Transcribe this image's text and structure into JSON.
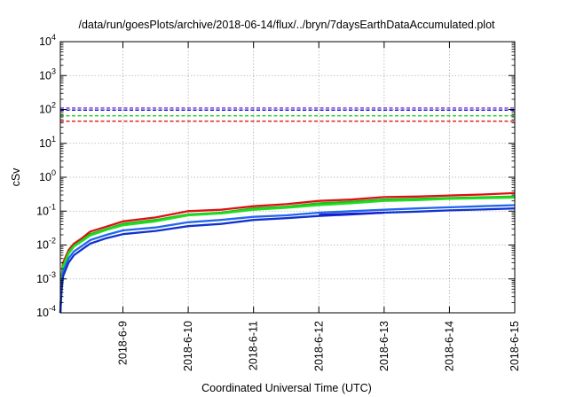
{
  "chart_data": {
    "type": "line",
    "title": "/data/run/goesPlots/archive/2018-06-14/flux/../bryn/7daysEarthDataAccumulated.plot",
    "xlabel": "Coordinated Universal Time (UTC)",
    "ylabel": "cSv",
    "y_scale": "log",
    "ylim": [
      0.0001,
      10000
    ],
    "y_ticks": [
      {
        "value": 0.0001,
        "base": "10",
        "exp": "-4"
      },
      {
        "value": 0.001,
        "base": "10",
        "exp": "-3"
      },
      {
        "value": 0.01,
        "base": "10",
        "exp": "-2"
      },
      {
        "value": 0.1,
        "base": "10",
        "exp": "-1"
      },
      {
        "value": 1,
        "base": "10",
        "exp": "0"
      },
      {
        "value": 10,
        "base": "10",
        "exp": "1"
      },
      {
        "value": 100,
        "base": "10",
        "exp": "2"
      },
      {
        "value": 1000,
        "base": "10",
        "exp": "3"
      },
      {
        "value": 10000,
        "base": "10",
        "exp": "4"
      }
    ],
    "xlim": [
      "2018-06-08 01:00",
      "2018-06-15 00:00"
    ],
    "x_ticks": [
      "2018-6-9",
      "2018-6-10",
      "2018-6-11",
      "2018-6-12",
      "2018-6-13",
      "2018-6-14",
      "2018-6-15"
    ],
    "grid": true,
    "legend": "none",
    "thresholds": [
      {
        "value": 110,
        "color": "#7b2fd0",
        "style": "dashed"
      },
      {
        "value": 95,
        "color": "#1010e0",
        "style": "dashed"
      },
      {
        "value": 65,
        "color": "#1fce1f",
        "style": "dashed"
      },
      {
        "value": 45,
        "color": "#e01010",
        "style": "dashed"
      }
    ],
    "series": [
      {
        "color": "#dd1111",
        "points": [
          [
            "2018-06-08 01:00",
            0.0001
          ],
          [
            "2018-06-08 01:30",
            0.0012
          ],
          [
            "2018-06-08 02:00",
            0.003
          ],
          [
            "2018-06-08 04:00",
            0.007
          ],
          [
            "2018-06-08 06:00",
            0.011
          ],
          [
            "2018-06-08 09:00",
            0.016
          ],
          [
            "2018-06-08 12:00",
            0.025
          ],
          [
            "2018-06-08 18:00",
            0.035
          ],
          [
            "2018-06-09 00:00",
            0.05
          ],
          [
            "2018-06-09 12:00",
            0.065
          ],
          [
            "2018-06-10 00:00",
            0.1
          ],
          [
            "2018-06-10 12:00",
            0.11
          ],
          [
            "2018-06-11 00:00",
            0.14
          ],
          [
            "2018-06-11 12:00",
            0.16
          ],
          [
            "2018-06-12 00:00",
            0.2
          ],
          [
            "2018-06-12 12:00",
            0.22
          ],
          [
            "2018-06-13 00:00",
            0.26
          ],
          [
            "2018-06-13 12:00",
            0.27
          ],
          [
            "2018-06-14 00:00",
            0.29
          ],
          [
            "2018-06-14 12:00",
            0.31
          ],
          [
            "2018-06-15 00:00",
            0.34
          ]
        ]
      },
      {
        "color": "#22bb22",
        "points": [
          [
            "2018-06-08 01:00",
            0.0001
          ],
          [
            "2018-06-08 01:30",
            0.001
          ],
          [
            "2018-06-08 02:00",
            0.0025
          ],
          [
            "2018-06-08 04:00",
            0.006
          ],
          [
            "2018-06-08 06:00",
            0.0095
          ],
          [
            "2018-06-08 09:00",
            0.014
          ],
          [
            "2018-06-08 12:00",
            0.021
          ],
          [
            "2018-06-08 18:00",
            0.03
          ],
          [
            "2018-06-09 00:00",
            0.042
          ],
          [
            "2018-06-09 12:00",
            0.055
          ],
          [
            "2018-06-10 00:00",
            0.08
          ],
          [
            "2018-06-10 12:00",
            0.09
          ],
          [
            "2018-06-11 00:00",
            0.12
          ],
          [
            "2018-06-11 12:00",
            0.135
          ],
          [
            "2018-06-12 00:00",
            0.17
          ],
          [
            "2018-06-12 12:00",
            0.19
          ],
          [
            "2018-06-13 00:00",
            0.22
          ],
          [
            "2018-06-13 12:00",
            0.23
          ],
          [
            "2018-06-14 00:00",
            0.245
          ],
          [
            "2018-06-14 12:00",
            0.255
          ],
          [
            "2018-06-15 00:00",
            0.27
          ]
        ]
      },
      {
        "color": "#22dd22",
        "points": [
          [
            "2018-06-08 01:00",
            0.0001
          ],
          [
            "2018-06-08 01:30",
            0.0009
          ],
          [
            "2018-06-08 02:00",
            0.0022
          ],
          [
            "2018-06-08 04:00",
            0.0055
          ],
          [
            "2018-06-08 06:00",
            0.009
          ],
          [
            "2018-06-08 09:00",
            0.013
          ],
          [
            "2018-06-08 12:00",
            0.019
          ],
          [
            "2018-06-08 18:00",
            0.028
          ],
          [
            "2018-06-09 00:00",
            0.038
          ],
          [
            "2018-06-09 12:00",
            0.05
          ],
          [
            "2018-06-10 00:00",
            0.075
          ],
          [
            "2018-06-10 12:00",
            0.085
          ],
          [
            "2018-06-11 00:00",
            0.11
          ],
          [
            "2018-06-11 12:00",
            0.125
          ],
          [
            "2018-06-12 00:00",
            0.15
          ],
          [
            "2018-06-12 12:00",
            0.17
          ],
          [
            "2018-06-13 00:00",
            0.2
          ],
          [
            "2018-06-13 12:00",
            0.21
          ],
          [
            "2018-06-14 00:00",
            0.23
          ],
          [
            "2018-06-14 12:00",
            0.24
          ],
          [
            "2018-06-15 00:00",
            0.25
          ]
        ]
      },
      {
        "color": "#2266ee",
        "points": [
          [
            "2018-06-08 01:00",
            0.0001
          ],
          [
            "2018-06-08 01:30",
            0.0007
          ],
          [
            "2018-06-08 02:00",
            0.0016
          ],
          [
            "2018-06-08 04:00",
            0.004
          ],
          [
            "2018-06-08 06:00",
            0.0065
          ],
          [
            "2018-06-08 09:00",
            0.0095
          ],
          [
            "2018-06-08 12:00",
            0.014
          ],
          [
            "2018-06-08 18:00",
            0.02
          ],
          [
            "2018-06-09 00:00",
            0.027
          ],
          [
            "2018-06-09 12:00",
            0.033
          ],
          [
            "2018-06-10 00:00",
            0.047
          ],
          [
            "2018-06-10 12:00",
            0.055
          ],
          [
            "2018-06-11 00:00",
            0.068
          ],
          [
            "2018-06-11 12:00",
            0.075
          ],
          [
            "2018-06-12 00:00",
            0.09
          ],
          [
            "2018-06-12 12:00",
            0.1
          ],
          [
            "2018-06-13 00:00",
            0.11
          ],
          [
            "2018-06-13 12:00",
            0.12
          ],
          [
            "2018-06-14 00:00",
            0.13
          ],
          [
            "2018-06-14 12:00",
            0.14
          ],
          [
            "2018-06-15 00:00",
            0.15
          ]
        ]
      },
      {
        "color": "#1133cc",
        "points": [
          [
            "2018-06-08 01:00",
            0.0001
          ],
          [
            "2018-06-08 01:30",
            0.0005
          ],
          [
            "2018-06-08 02:00",
            0.0012
          ],
          [
            "2018-06-08 04:00",
            0.003
          ],
          [
            "2018-06-08 06:00",
            0.005
          ],
          [
            "2018-06-08 09:00",
            0.0075
          ],
          [
            "2018-06-08 12:00",
            0.011
          ],
          [
            "2018-06-08 18:00",
            0.016
          ],
          [
            "2018-06-09 00:00",
            0.021
          ],
          [
            "2018-06-09 12:00",
            0.026
          ],
          [
            "2018-06-10 00:00",
            0.036
          ],
          [
            "2018-06-10 12:00",
            0.042
          ],
          [
            "2018-06-11 00:00",
            0.055
          ],
          [
            "2018-06-11 12:00",
            0.062
          ],
          [
            "2018-06-12 00:00",
            0.072
          ],
          [
            "2018-06-12 12:00",
            0.08
          ],
          [
            "2018-06-13 00:00",
            0.09
          ],
          [
            "2018-06-13 12:00",
            0.097
          ],
          [
            "2018-06-14 00:00",
            0.105
          ],
          [
            "2018-06-14 12:00",
            0.112
          ],
          [
            "2018-06-15 00:00",
            0.12
          ]
        ]
      },
      {
        "color": "#1a1acc",
        "points": [
          [
            "2018-06-12 00:00",
            0.078
          ],
          [
            "2018-06-12 06:00",
            0.081
          ],
          [
            "2018-06-12 12:00",
            0.084
          ],
          [
            "2018-06-12 18:00",
            0.087
          ],
          [
            "2018-06-13 00:00",
            0.09
          ]
        ]
      }
    ]
  }
}
